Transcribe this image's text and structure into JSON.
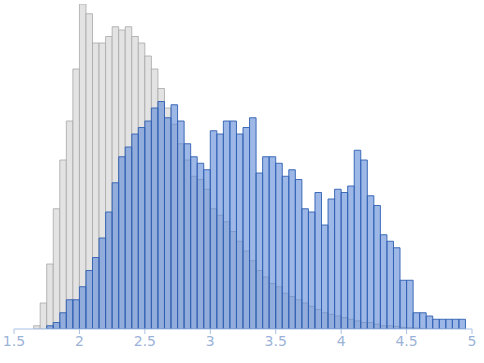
{
  "chart_data": {
    "type": "histogram",
    "bins": [
      1.65,
      1.7,
      1.75,
      1.8,
      1.85,
      1.9,
      1.95,
      2,
      2.05,
      2.1,
      2.15,
      2.2,
      2.25,
      2.3,
      2.35,
      2.4,
      2.45,
      2.5,
      2.55,
      2.6,
      2.65,
      2.7,
      2.75,
      2.8,
      2.85,
      2.9,
      2.95,
      3,
      3.05,
      3.1,
      3.15,
      3.2,
      3.25,
      3.3,
      3.35,
      3.4,
      3.45,
      3.5,
      3.55,
      3.6,
      3.65,
      3.7,
      3.75,
      3.8,
      3.85,
      3.9,
      3.95,
      4,
      4.05,
      4.1,
      4.15,
      4.2,
      4.25,
      4.3,
      4.35,
      4.4,
      4.45,
      4.5,
      4.55,
      4.6,
      4.65,
      4.7,
      4.75,
      4.8,
      4.85,
      4.9,
      4.95
    ],
    "series": [
      {
        "color": "#e3e3e3",
        "values": [
          1,
          8,
          20,
          37,
          52,
          64,
          80,
          100,
          97,
          88,
          88,
          90,
          93,
          92,
          93,
          90,
          88,
          84,
          80,
          74,
          68,
          63,
          57,
          52,
          47,
          46,
          43,
          37,
          35,
          33,
          30,
          27,
          24,
          21,
          18,
          16,
          14,
          13,
          11,
          10,
          9,
          8,
          7,
          6,
          5,
          4.5,
          4,
          3.5,
          3,
          2.5,
          2,
          2,
          1.5,
          1,
          1,
          0.8,
          0.5,
          0.4,
          0.3,
          0.2,
          0,
          0,
          0,
          0,
          0,
          0
        ]
      },
      {
        "color": "#5b87d6",
        "values": [
          0,
          0,
          1,
          2,
          5,
          9,
          9,
          13,
          18,
          22,
          28,
          36,
          45,
          53,
          56,
          60,
          62,
          64,
          68,
          70,
          65,
          69,
          64,
          57,
          53,
          51,
          49,
          61,
          60,
          64,
          64,
          60,
          62,
          65,
          48,
          53,
          53,
          51,
          47,
          49,
          46,
          37,
          36,
          42,
          32,
          40,
          43,
          42,
          44,
          55,
          52,
          41,
          38,
          29,
          27,
          25,
          15,
          15,
          5,
          5,
          4,
          3,
          3,
          3,
          3,
          3
        ]
      }
    ],
    "xlim": [
      1.5,
      5
    ],
    "xticks": [
      1.5,
      2,
      2.5,
      3,
      3.5,
      4,
      4.5,
      5
    ],
    "ylim": [
      0,
      100
    ],
    "tick_labels": "x"
  }
}
